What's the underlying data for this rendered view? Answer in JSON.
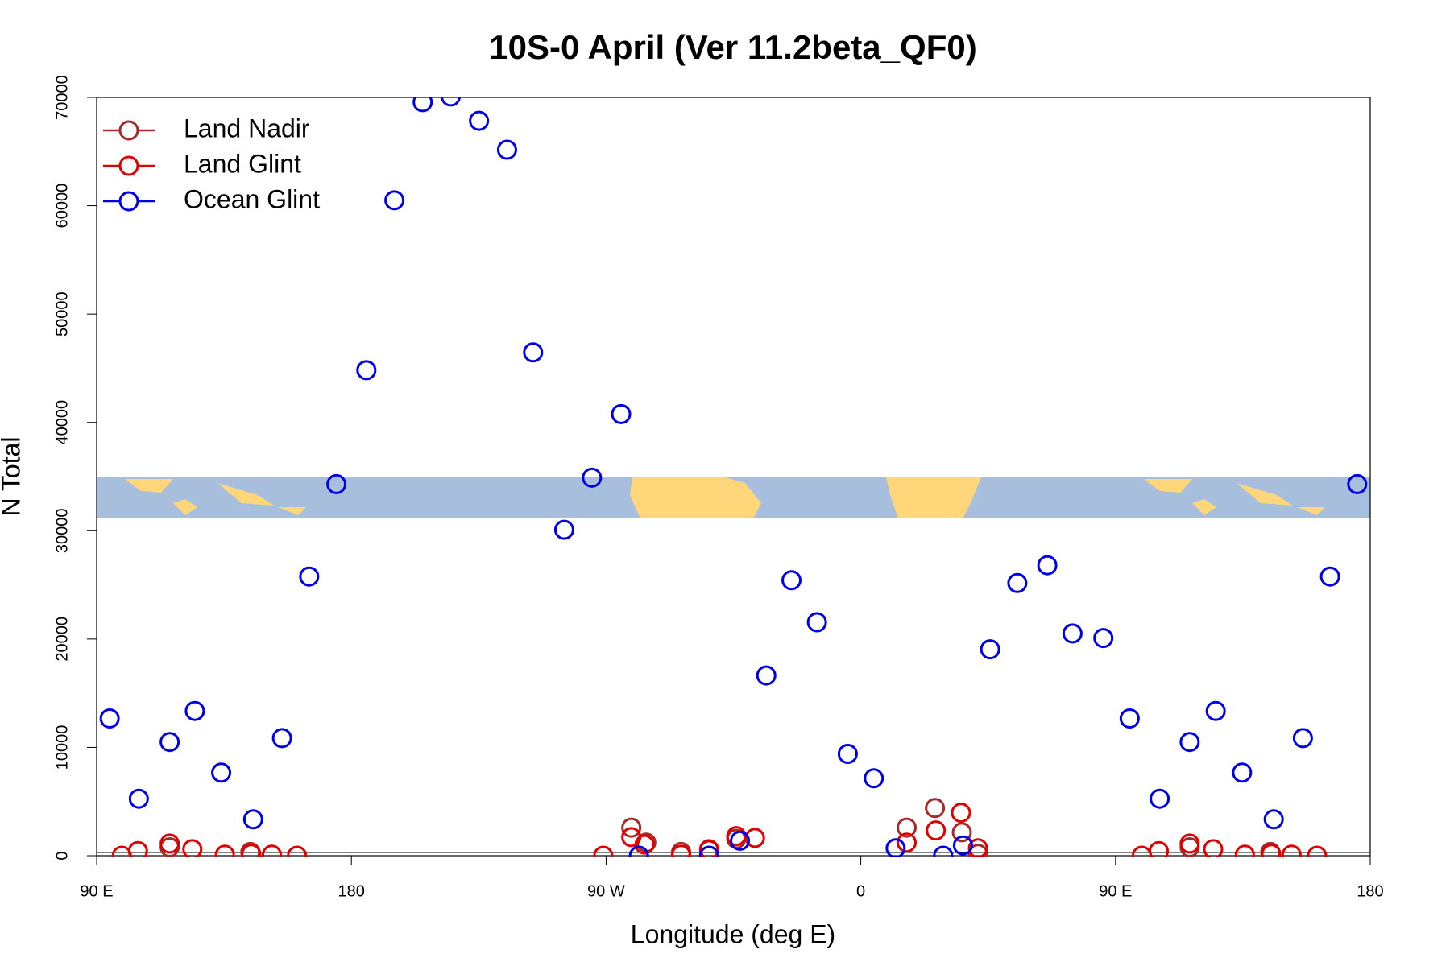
{
  "chart_data": {
    "type": "scatter",
    "title": "10S-0 April (Ver 11.2beta_QF0)",
    "x_label": "Longitude (deg E)",
    "y_label": "N Total",
    "xlim": [
      90,
      540
    ],
    "ylim": [
      0,
      70000
    ],
    "xticks": [
      {
        "value": 90,
        "label": "90 E"
      },
      180,
      {
        "value": 270,
        "label": "90 W"
      },
      {
        "value": 360,
        "label": "0"
      },
      {
        "value": 450,
        "label": "90 E"
      },
      {
        "value": 540,
        "label": "180"
      }
    ],
    "yticks": [
      0,
      10000,
      20000,
      30000,
      40000,
      50000,
      60000,
      70000
    ],
    "legend": "top-left",
    "series": [
      {
        "name": "Land Nadir",
        "color": "#a52a2a",
        "x": [
          115.8,
          144.3,
          278.9,
          284.2,
          296.5,
          306.4,
          316,
          376.2,
          386.2,
          395.7,
          401.4,
          476.2,
          504.7
        ],
        "values": [
          780,
          340,
          2590,
          1210,
          340,
          600,
          1550,
          2590,
          4400,
          2160,
          170,
          780,
          340
        ]
      },
      {
        "name": "Land Glint",
        "color": "#e00000",
        "x": [
          98.9,
          104.6,
          115.8,
          123.8,
          135.3,
          144.6,
          151.9,
          160.8,
          269,
          278.9,
          283.6,
          296.5,
          306.4,
          316,
          322.6,
          376.2,
          386.5,
          395.4,
          401.4,
          459.3,
          465.3,
          476.2,
          484.5,
          495.7,
          505,
          512.2,
          521.2
        ],
        "values": [
          0,
          430,
          1120,
          600,
          90,
          170,
          90,
          0,
          0,
          1720,
          1030,
          90,
          520,
          1810,
          1640,
          1210,
          2330,
          3970,
          690,
          0,
          430,
          1120,
          600,
          90,
          170,
          90,
          0
        ]
      },
      {
        "name": "Ocean Glint",
        "color": "#0000e6",
        "x": [
          94.6,
          104.9,
          115.8,
          124.7,
          134,
          145.3,
          155.5,
          165.1,
          174.7,
          185.3,
          195.2,
          205.2,
          215.1,
          225.1,
          235,
          244.2,
          255.2,
          265,
          275.3,
          281.6,
          306.4,
          317.3,
          326.6,
          335.5,
          344.5,
          355.4,
          364.6,
          372.3,
          389.1,
          396.1,
          405.7,
          415.3,
          425.9,
          434.8,
          445.7,
          455,
          465.6,
          476.2,
          485.4,
          494.7,
          505.9,
          516.2,
          525.8,
          535.4
        ],
        "values": [
          12670,
          5260,
          10500,
          13360,
          7670,
          3360,
          10860,
          25770,
          34300,
          44820,
          60500,
          69560,
          70080,
          67840,
          65170,
          46460,
          30090,
          34900,
          40770,
          0,
          0,
          1380,
          16640,
          25430,
          21550,
          9400,
          7150,
          690,
          0,
          950,
          19050,
          25170,
          26810,
          20520,
          20090,
          12670,
          5260,
          10500,
          13360,
          7670,
          3360,
          10860,
          25770,
          34300
        ]
      }
    ]
  }
}
